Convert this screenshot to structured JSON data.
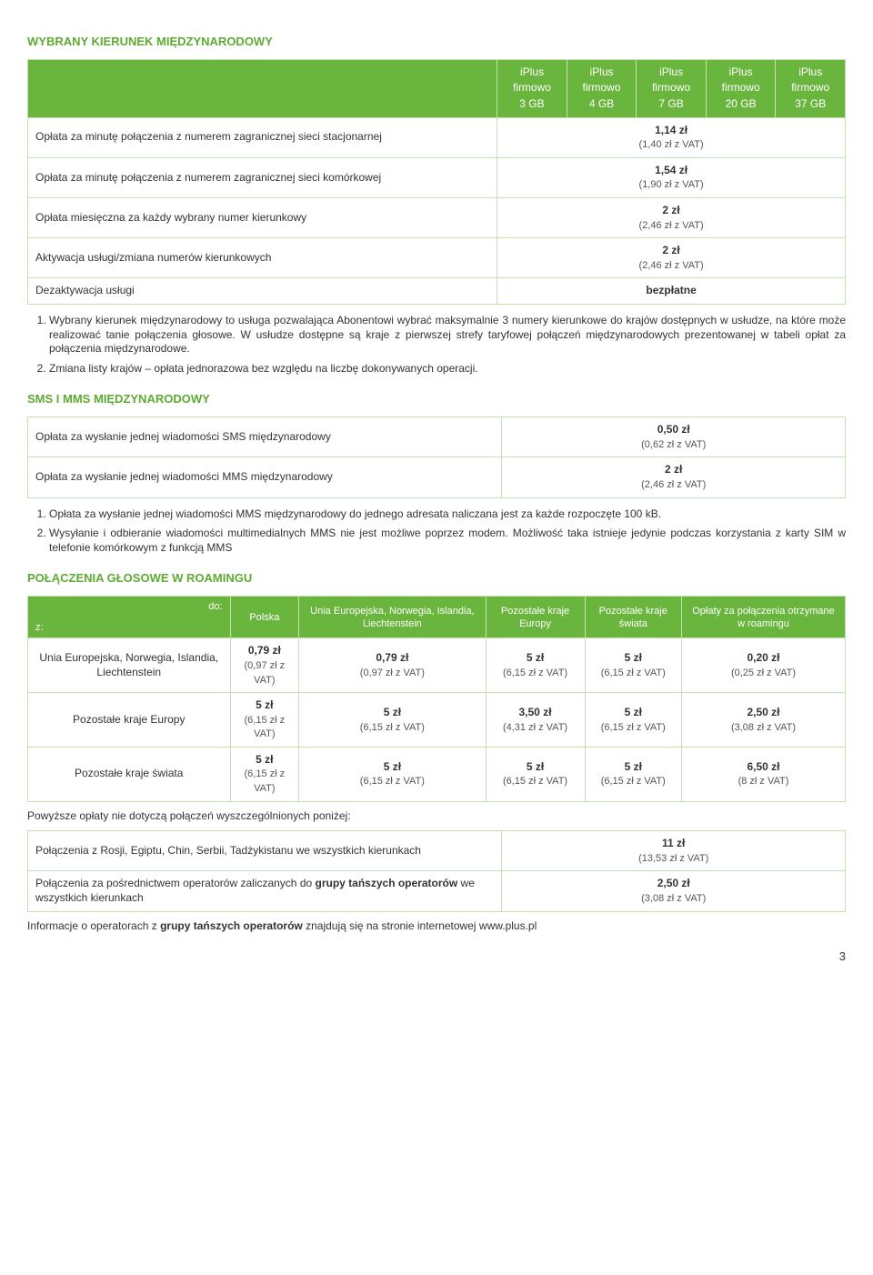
{
  "sections": {
    "wybrany": {
      "title": "WYBRANY KIERUNEK MIĘDZYNARODOWY",
      "plans": {
        "top": "iPlus",
        "mid": "firmowo",
        "bot": [
          "3 GB",
          "4 GB",
          "7 GB",
          "20 GB",
          "37 GB"
        ]
      },
      "rows": [
        {
          "label": "Opłata za minutę połączenia z numerem zagranicznej sieci stacjonarnej",
          "value": "1,14 zł",
          "sub": "(1,40 zł z VAT)"
        },
        {
          "label": "Opłata za minutę połączenia z numerem zagranicznej sieci komórkowej",
          "value": "1,54 zł",
          "sub": "(1,90 zł z VAT)"
        },
        {
          "label": "Opłata miesięczna za każdy wybrany numer kierunkowy",
          "value": "2 zł",
          "sub": "(2,46 zł z VAT)"
        },
        {
          "label": "Aktywacja usługi/zmiana numerów kierunkowych",
          "value": "2 zł",
          "sub": "(2,46 zł z VAT)"
        },
        {
          "label": "Dezaktywacja usługi",
          "value": "bezpłatne",
          "sub": ""
        }
      ],
      "notes": [
        "Wybrany kierunek międzynarodowy to usługa pozwalająca Abonentowi wybrać maksymalnie 3 numery kierunkowe do krajów dostępnych w usłudze, na które może realizować tanie połączenia głosowe. W usłudze dostępne są kraje z pierwszej strefy taryfowej połączeń międzynarodowych prezentowanej w tabeli opłat za połączenia międzynarodowe.",
        "Zmiana listy krajów – opłata jednorazowa bez względu na liczbę dokonywanych operacji."
      ]
    },
    "sms_mms": {
      "title": "SMS I MMS MIĘDZYNARODOWY",
      "rows": [
        {
          "label": "Opłata za wysłanie jednej wiadomości SMS międzynarodowy",
          "value": "0,50 zł",
          "sub": "(0,62 zł z VAT)"
        },
        {
          "label": "Opłata za wysłanie jednej wiadomości MMS międzynarodowy",
          "value": "2 zł",
          "sub": "(2,46 zł z VAT)"
        }
      ],
      "notes": [
        "Opłata za wysłanie jednej wiadomości MMS  międzynarodowy do jednego adresata naliczana jest za każde rozpoczęte 100 kB.",
        "Wysyłanie i odbieranie wiadomości multimedialnych MMS nie jest możliwe poprzez modem. Możliwość taka istnieje jedynie podczas korzystania z karty SIM w telefonie komórkowym z funkcją MMS"
      ]
    },
    "roaming": {
      "title": "POŁĄCZENIA GŁOSOWE W ROAMINGU",
      "corner": {
        "z": "z:",
        "do": "do:"
      },
      "cols": [
        "Polska",
        "Unia Europejska, Norwegia, Islandia, Liechtenstein",
        "Pozostałe kraje Europy",
        "Pozostałe kraje świata",
        "Opłaty za połączenia otrzymane w roamingu"
      ],
      "rows": [
        {
          "label": "Unia Europejska, Norwegia, Islandia, Liechtenstein",
          "cells": [
            {
              "v": "0,79 zł",
              "s": "(0,97 zł z VAT)"
            },
            {
              "v": "0,79 zł",
              "s": "(0,97 zł z VAT)"
            },
            {
              "v": "5 zł",
              "s": "(6,15 zł z VAT)"
            },
            {
              "v": "5 zł",
              "s": "(6,15 zł z VAT)"
            },
            {
              "v": "0,20 zł",
              "s": "(0,25 zł z VAT)"
            }
          ]
        },
        {
          "label": "Pozostałe kraje Europy",
          "cells": [
            {
              "v": "5 zł",
              "s": "(6,15 zł z VAT)"
            },
            {
              "v": "5 zł",
              "s": "(6,15 zł z VAT)"
            },
            {
              "v": "3,50 zł",
              "s": "(4,31 zł z VAT)"
            },
            {
              "v": "5 zł",
              "s": "(6,15 zł z VAT)"
            },
            {
              "v": "2,50 zł",
              "s": "(3,08 zł z VAT)"
            }
          ]
        },
        {
          "label": "Pozostałe kraje świata",
          "cells": [
            {
              "v": "5 zł",
              "s": "(6,15 zł z VAT)"
            },
            {
              "v": "5 zł",
              "s": "(6,15 zł z VAT)"
            },
            {
              "v": "5 zł",
              "s": "(6,15 zł z VAT)"
            },
            {
              "v": "5 zł",
              "s": "(6,15 zł z VAT)"
            },
            {
              "v": "6,50 zł",
              "s": "(8 zł z VAT)"
            }
          ]
        }
      ],
      "below_para": "Powyższe opłaty nie dotyczą połączeń wyszczególnionych poniżej:",
      "extra_rows": [
        {
          "label": "Połączenia z Rosji, Egiptu, Chin, Serbii, Tadżykistanu we wszystkich kierunkach",
          "value": "11 zł",
          "sub": "(13,53 zł z VAT)"
        },
        {
          "label": "Połączenia za pośrednictwem operatorów zaliczanych do grupy tańszych operatorów we wszystkich kierunkach",
          "bold": "grupy tańszych operatorów",
          "value": "2,50 zł",
          "sub": "(3,08 zł z VAT)"
        }
      ],
      "footer_para": "Informacje o operatorach z grupy tańszych operatorów znajdują się na stronie internetowej www.plus.pl",
      "footer_bold": "grupy tańszych operatorów"
    }
  },
  "page_number": "3"
}
